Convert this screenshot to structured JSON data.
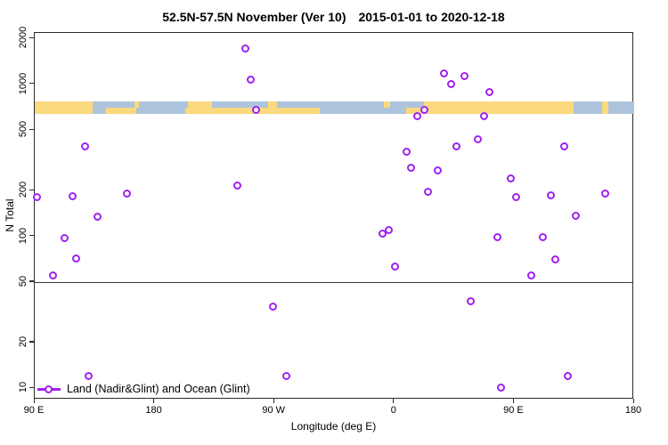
{
  "title": {
    "left": "52.5N-57.5N November (Ver 10)",
    "right": "2015-01-01 to 2020-12-18"
  },
  "legend": {
    "label": "Land (Nadir&Glint) and Ocean (Glint)",
    "marker": "open-circle-on-line"
  },
  "colors": {
    "point": "#a020f0",
    "land": "#fbd97e",
    "ocean": "#aec3dc",
    "axis": "#2b2b2b",
    "refline": "#3a3a3a"
  },
  "chart_data": {
    "type": "scatter",
    "title": "52.5N-57.5N November (Ver 10)   2015-01-01 to 2020-12-18",
    "xlabel": "Longitude (deg E)",
    "ylabel": "N Total",
    "y_scale": "log10",
    "ylim": [
      10,
      2200
    ],
    "xlim_axis_units": [
      90,
      540
    ],
    "x_ticks": [
      {
        "pos": 90,
        "label": "90 E"
      },
      {
        "pos": 180,
        "label": "180"
      },
      {
        "pos": 270,
        "label": "90 W"
      },
      {
        "pos": 360,
        "label": "0"
      },
      {
        "pos": 450,
        "label": "90 E"
      },
      {
        "pos": 540,
        "label": "180"
      }
    ],
    "y_ticks": [
      2000,
      1000,
      500,
      200,
      100,
      50,
      20,
      10
    ],
    "reference_line_n": 50,
    "grid": false,
    "legend_position": "bottom-left",
    "series": [
      {
        "name": "Land (Nadir&Glint) and Ocean (Glint)",
        "marker": "open-circle",
        "points_lonE_n": [
          [
            92,
            180
          ],
          [
            104,
            55
          ],
          [
            112.7,
            96
          ],
          [
            118.8,
            183
          ],
          [
            121.4,
            71
          ],
          [
            128.1,
            385
          ],
          [
            130.8,
            12
          ],
          [
            137.5,
            133
          ],
          [
            159.5,
            190
          ],
          [
            242.5,
            215
          ],
          [
            248.5,
            1700
          ],
          [
            252.5,
            1060
          ],
          [
            256.5,
            670
          ],
          [
            269.2,
            34
          ],
          [
            279.2,
            12
          ],
          [
            351.5,
            104
          ],
          [
            356.1,
            109
          ],
          [
            360.8,
            63
          ],
          [
            369.5,
            355
          ],
          [
            372.8,
            280
          ],
          [
            377.5,
            610
          ],
          [
            382.9,
            670
          ],
          [
            385.5,
            195
          ],
          [
            392.9,
            270
          ],
          [
            397.6,
            1170
          ],
          [
            403,
            1000
          ],
          [
            407,
            385
          ],
          [
            413,
            1120
          ],
          [
            417.6,
            37
          ],
          [
            423,
            430
          ],
          [
            427.7,
            610
          ],
          [
            431.7,
            880
          ],
          [
            437.7,
            98
          ],
          [
            440.4,
            10
          ],
          [
            447.7,
            240
          ],
          [
            451.7,
            180
          ],
          [
            463.1,
            55
          ],
          [
            471.8,
            98
          ],
          [
            477.8,
            185
          ],
          [
            481.2,
            70
          ],
          [
            487.9,
            385
          ],
          [
            490.5,
            12
          ],
          [
            496.5,
            135
          ],
          [
            518.6,
            190
          ]
        ]
      }
    ],
    "map_band": {
      "description": "world coastline strip for 52.5N-57.5N drawn across plot",
      "n_top": 770,
      "n_bottom": 640,
      "rows": [
        {
          "half": "top",
          "land_segments_frac": [
            [
              0.0,
              0.097
            ],
            [
              0.166,
              0.174
            ],
            [
              0.256,
              0.296
            ],
            [
              0.389,
              0.404
            ],
            [
              0.583,
              0.593
            ],
            [
              0.649,
              0.899
            ],
            [
              0.947,
              0.957
            ]
          ]
        },
        {
          "half": "bottom",
          "land_segments_frac": [
            [
              0.0,
              0.097
            ],
            [
              0.119,
              0.169
            ],
            [
              0.251,
              0.476
            ],
            [
              0.62,
              0.899
            ],
            [
              0.947,
              0.957
            ]
          ]
        }
      ]
    }
  }
}
